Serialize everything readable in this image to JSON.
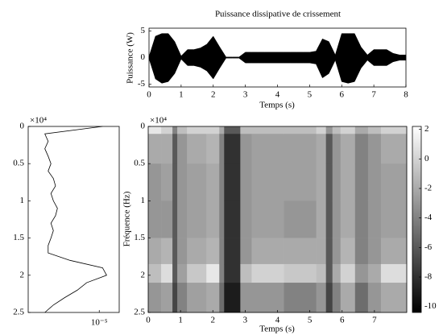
{
  "chart_data": [
    {
      "type": "band",
      "title": "Puissance dissipative de crissement",
      "xlabel": "Temps (s)",
      "ylabel": "Puissance (W)",
      "color": "#000000",
      "x": [
        0,
        0.2,
        0.4,
        0.6,
        0.8,
        1.0,
        1.2,
        1.4,
        1.6,
        1.8,
        2.0,
        2.2,
        2.4,
        2.6,
        2.8,
        3.0,
        3.2,
        3.4,
        3.6,
        3.8,
        4.0,
        4.2,
        4.4,
        4.6,
        4.8,
        5.0,
        5.2,
        5.4,
        5.6,
        5.8,
        6.0,
        6.2,
        6.4,
        6.6,
        6.8,
        7.0,
        7.2,
        7.4,
        7.6,
        7.8,
        8.0
      ],
      "values_max": [
        0.2,
        4,
        4.5,
        4.5,
        3,
        0.3,
        1.5,
        1.5,
        1.8,
        2.5,
        4,
        2,
        0.1,
        0.1,
        0.1,
        1,
        1,
        1,
        1,
        1,
        1,
        1,
        1,
        1,
        1,
        1,
        1.2,
        3.5,
        3,
        0.5,
        4.5,
        4.5,
        4.5,
        2,
        0.5,
        1.5,
        1.5,
        1.5,
        0.8,
        0.5,
        0.5
      ],
      "values_min": [
        -0.2,
        -4,
        -4.8,
        -4.5,
        -3,
        -0.3,
        -1.5,
        -1.5,
        -1.8,
        -2.5,
        -4,
        -2,
        -0.1,
        -0.1,
        -0.1,
        -1,
        -1,
        -1,
        -1,
        -1,
        -1,
        -1,
        -1,
        -1,
        -1,
        -1,
        -1.2,
        -3.8,
        -3,
        -0.5,
        -4.5,
        -4.8,
        -4.5,
        -2,
        -0.5,
        -1.5,
        -1.5,
        -1.5,
        -0.8,
        -0.5,
        -0.5
      ],
      "xlim": [
        0,
        8
      ],
      "xticks": [
        0,
        1,
        2,
        3,
        4,
        5,
        6,
        7,
        8
      ],
      "ylim": [
        -5.5,
        5.5
      ],
      "yticks": [
        -5,
        0,
        5
      ]
    },
    {
      "type": "line",
      "orientation": "vertical",
      "log_scale": true,
      "color": "#000000",
      "x_multiplier": "×10⁴",
      "x": [
        0,
        1000,
        2000,
        3000,
        4000,
        5000,
        6000,
        7000,
        8000,
        9000,
        10000,
        11000,
        12000,
        13000,
        14000,
        15000,
        16000,
        17000,
        18000,
        19000,
        20000,
        21000,
        22000,
        23000,
        24000,
        25000
      ],
      "values": [
        1.2e-05,
        5e-07,
        6e-07,
        5e-07,
        6e-07,
        7e-07,
        6e-07,
        8e-07,
        9e-07,
        7e-07,
        8e-07,
        1e-06,
        9e-07,
        7e-07,
        8e-07,
        7e-07,
        6e-07,
        6e-07,
        2e-06,
        1.2e-05,
        1.5e-05,
        5e-06,
        3e-06,
        1.5e-06,
        8e-07,
        5e-07
      ],
      "xlim": [
        0,
        25000
      ],
      "xticks": [
        {
          "value": 0,
          "label": "0"
        },
        {
          "value": 5000,
          "label": "0.5"
        },
        {
          "value": 10000,
          "label": "1"
        },
        {
          "value": 15000,
          "label": "1.5"
        },
        {
          "value": 20000,
          "label": "2"
        },
        {
          "value": 25000,
          "label": "2.5"
        }
      ],
      "ylim": [
        2e-07,
        3e-05
      ],
      "yticks": [
        {
          "value": 1e-05,
          "label": "10⁻⁵"
        }
      ]
    },
    {
      "type": "heatmap",
      "xlabel": "Temps (s)",
      "ylabel": "Fréquence (Hz)",
      "y_multiplier": "×10⁴",
      "colormap": "gray",
      "x_edges": [
        0,
        0.4,
        0.75,
        0.9,
        1.2,
        1.8,
        2.2,
        2.35,
        2.85,
        3.2,
        4.2,
        5.2,
        5.5,
        5.7,
        5.95,
        6.4,
        6.8,
        7.2,
        8
      ],
      "y_edges": [
        0,
        1000,
        5000,
        10000,
        15000,
        18500,
        21000,
        25000
      ],
      "values": [
        [
          1,
          -2,
          -3,
          -3,
          -2,
          -1,
          -3
        ],
        [
          0,
          -2,
          -2.5,
          -3,
          -1.5,
          0.5,
          -2.5
        ],
        [
          -4,
          -6,
          -6,
          -6,
          -6,
          -6,
          -7
        ],
        [
          -1,
          -3,
          -3,
          -3,
          -3,
          -2.5,
          -4
        ],
        [
          0,
          -2,
          -2.5,
          -2.5,
          -2,
          -0.5,
          -2.5
        ],
        [
          0,
          -1.5,
          -2,
          -2,
          -1.5,
          1,
          -2
        ],
        [
          -2,
          -4,
          -4,
          -4,
          -4,
          -4,
          -5
        ],
        [
          -6,
          -8,
          -8,
          -8,
          -8,
          -8,
          -9
        ],
        [
          -1,
          -3,
          -3,
          -3,
          -3,
          -1,
          -3
        ],
        [
          -1,
          -2.5,
          -2.5,
          -2.5,
          -2,
          0,
          -3
        ],
        [
          -1,
          -2.5,
          -2.5,
          -3,
          -2,
          -0.5,
          -4
        ],
        [
          0,
          -2,
          -2,
          -2,
          -2,
          -1,
          -3
        ],
        [
          -3,
          -6,
          -6,
          -6,
          -6,
          -6,
          -7
        ],
        [
          -1,
          -3,
          -3,
          -3,
          -3,
          -2,
          -4
        ],
        [
          0,
          -2,
          -2,
          -2,
          -1.5,
          0,
          -2
        ],
        [
          -2,
          -4,
          -4,
          -4,
          -4,
          -3,
          -5
        ],
        [
          -1,
          -3,
          -3,
          -3,
          -3,
          -2,
          -3
        ],
        [
          0,
          -2,
          -2.5,
          -2.5,
          -2,
          0.5,
          -2
        ]
      ],
      "xlim": [
        0,
        8
      ],
      "xticks": [
        0,
        1,
        2,
        3,
        4,
        5,
        6,
        7
      ],
      "ylim": [
        0,
        25000
      ],
      "yticks": [
        {
          "value": 0,
          "label": "0"
        },
        {
          "value": 5000,
          "label": "0.5"
        },
        {
          "value": 10000,
          "label": "1"
        },
        {
          "value": 15000,
          "label": "1.5"
        },
        {
          "value": 20000,
          "label": "2"
        },
        {
          "value": 25000,
          "label": "2.5"
        }
      ],
      "zlim": [
        -10.4,
        2.2
      ],
      "zticks": [
        -10,
        -8,
        -6,
        -4,
        -2,
        0,
        2
      ]
    }
  ]
}
